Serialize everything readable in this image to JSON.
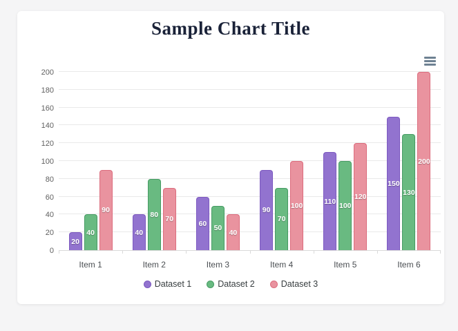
{
  "chart_data": {
    "type": "bar",
    "title": "Sample Chart Title",
    "title_color": "#1a2238",
    "categories": [
      "Item 1",
      "Item 2",
      "Item 3",
      "Item 4",
      "Item 5",
      "Item 6"
    ],
    "series": [
      {
        "name": "Dataset 1",
        "values": [
          20,
          40,
          60,
          90,
          110,
          150
        ],
        "fill": "#9273cf",
        "border": "#7c59c0"
      },
      {
        "name": "Dataset 2",
        "values": [
          40,
          80,
          50,
          70,
          100,
          130
        ],
        "fill": "#69ba81",
        "border": "#459b63"
      },
      {
        "name": "Dataset 3",
        "values": [
          90,
          70,
          40,
          100,
          120,
          200
        ],
        "fill": "#e9939f",
        "border": "#dc6c7d"
      }
    ],
    "xlabel": "",
    "ylabel": "",
    "ylim": [
      0,
      200
    ],
    "ytick_step": 20,
    "grid": true,
    "legend_position": "bottom",
    "data_labels": true,
    "data_label_color": "#ffffff"
  },
  "toolbar": {
    "menu_icon": "hamburger-menu",
    "icon_color": "#6e8192"
  }
}
